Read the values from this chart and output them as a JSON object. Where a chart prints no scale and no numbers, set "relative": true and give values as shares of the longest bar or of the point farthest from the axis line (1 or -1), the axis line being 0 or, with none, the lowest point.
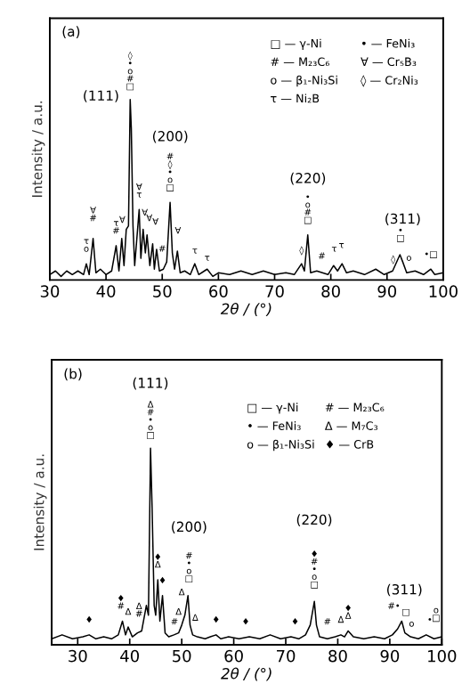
{
  "chart_data": [
    {
      "type": "line",
      "title": "(a)",
      "relative": true,
      "xlabel": "2θ / (°)",
      "ylabel": "Intensity / a.u.",
      "xlim": [
        30,
        100
      ],
      "xticks": [
        30,
        40,
        50,
        60,
        70,
        80,
        90,
        100
      ],
      "grid": false,
      "legend": false,
      "series": [
        {
          "color": "#000000",
          "x": [
            30,
            31,
            32,
            33,
            34,
            35,
            36,
            36.5,
            37,
            37.7,
            38.2,
            39,
            40,
            41,
            41.8,
            42.3,
            42.8,
            43.2,
            43.6,
            44.0,
            44.3,
            44.5,
            44.8,
            45.1,
            45.9,
            46.2,
            46.6,
            47.0,
            47.3,
            47.8,
            48.3,
            48.6,
            49.0,
            49.5,
            50.2,
            50.8,
            51.4,
            51.8,
            52.2,
            52.7,
            53.2,
            54,
            55,
            55.8,
            56.5,
            57.5,
            58,
            59,
            60,
            62,
            64,
            66,
            68,
            70,
            72,
            73.5,
            74.8,
            75.3,
            75.9,
            76.4,
            77.5,
            78.5,
            79.5,
            80.5,
            81.2,
            82,
            82.8,
            84,
            86,
            88,
            89.5,
            91,
            92.3,
            92.8,
            93.5,
            95,
            96.5,
            97.8,
            98.5,
            100
          ],
          "values": [
            0.03,
            0.05,
            0.02,
            0.05,
            0.03,
            0.05,
            0.03,
            0.09,
            0.03,
            0.23,
            0.04,
            0.06,
            0.03,
            0.05,
            0.19,
            0.05,
            0.23,
            0.08,
            0.28,
            0.3,
            1.0,
            0.84,
            0.3,
            0.08,
            0.39,
            0.12,
            0.28,
            0.15,
            0.25,
            0.08,
            0.2,
            0.06,
            0.17,
            0.05,
            0.06,
            0.1,
            0.43,
            0.15,
            0.06,
            0.16,
            0.04,
            0.05,
            0.03,
            0.09,
            0.03,
            0.05,
            0.06,
            0.02,
            0.04,
            0.03,
            0.05,
            0.03,
            0.05,
            0.03,
            0.04,
            0.03,
            0.09,
            0.05,
            0.25,
            0.04,
            0.05,
            0.04,
            0.03,
            0.08,
            0.05,
            0.09,
            0.04,
            0.05,
            0.03,
            0.06,
            0.03,
            0.05,
            0.14,
            0.1,
            0.04,
            0.05,
            0.03,
            0.06,
            0.03,
            0.04
          ]
        }
      ],
      "annotations": [
        "□ — γ-Ni",
        "# — M₂₃C₆",
        "o — β₁-Ni₃Si",
        "τ — Ni₂B",
        "• — FeNi₃",
        "∀ — Cr₅B₃",
        "◊ — Cr₂Ni₃",
        "(111)",
        "(200)",
        "(220)",
        "(311)",
        {
          "text": "◊\n•\no\n#\n□",
          "x": 44.3,
          "y": 1.0
        },
        {
          "text": "τ\no",
          "x": 36.5,
          "y": 0.1
        },
        {
          "text": "∀\n#",
          "x": 37.7,
          "y": 0.27
        },
        {
          "text": "τ\n#",
          "x": 41.8,
          "y": 0.2
        },
        {
          "text": "∀",
          "x": 42.9,
          "y": 0.26
        },
        {
          "text": "∀\nτ",
          "x": 45.9,
          "y": 0.4
        },
        {
          "text": "∀",
          "x": 46.9,
          "y": 0.3
        },
        {
          "text": "∀",
          "x": 47.7,
          "y": 0.27
        },
        {
          "text": "∀",
          "x": 48.8,
          "y": 0.25
        },
        {
          "text": "#",
          "x": 50.0,
          "y": 0.1
        },
        {
          "text": "#\n◊\n•\no\n□",
          "x": 51.4,
          "y": 0.44
        },
        {
          "text": "∀",
          "x": 52.8,
          "y": 0.2
        },
        {
          "text": "τ",
          "x": 55.8,
          "y": 0.09
        },
        {
          "text": "τ",
          "x": 58.0,
          "y": 0.05
        },
        {
          "text": "◊",
          "x": 74.8,
          "y": 0.09
        },
        {
          "text": "•\no\n#\n□",
          "x": 75.9,
          "y": 0.26
        },
        {
          "text": "#",
          "x": 78.4,
          "y": 0.06
        },
        {
          "text": "τ",
          "x": 80.6,
          "y": 0.1
        },
        {
          "text": "τ",
          "x": 81.9,
          "y": 0.12
        },
        {
          "text": "◊",
          "x": 91.1,
          "y": 0.04
        },
        {
          "text": "•\n□",
          "x": 92.4,
          "y": 0.16
        },
        {
          "text": "o",
          "x": 93.9,
          "y": 0.05
        },
        {
          "text": "•□",
          "x": 97.8,
          "y": 0.07
        }
      ]
    },
    {
      "type": "line",
      "title": "(b)",
      "relative": true,
      "xlabel": "2θ / (°)",
      "ylabel": "Intensity / a.u.",
      "xlim": [
        25,
        100
      ],
      "xticks": [
        30,
        40,
        50,
        60,
        70,
        80,
        90,
        100
      ],
      "grid": false,
      "legend": false,
      "series": [
        {
          "color": "#000000",
          "x": [
            25,
            27,
            29,
            31,
            32.2,
            33.5,
            35,
            36.5,
            37.8,
            38.6,
            39.2,
            39.7,
            40.5,
            41.5,
            42.3,
            43.2,
            43.6,
            44.0,
            44.3,
            44.7,
            45.0,
            45.4,
            45.8,
            46.3,
            46.8,
            47.5,
            48.5,
            49.4,
            50.0,
            50.6,
            51.2,
            51.6,
            52.1,
            53,
            54.5,
            55.5,
            56.6,
            57.5,
            59,
            61,
            63,
            65,
            67,
            69,
            71,
            72.5,
            73.8,
            74.7,
            75.5,
            75.9,
            76.5,
            78,
            79.5,
            80.6,
            81.3,
            82,
            83,
            85,
            87,
            89,
            90.5,
            91.5,
            92.3,
            92.9,
            94,
            95.5,
            97,
            98.5,
            100
          ],
          "values": [
            0.03,
            0.05,
            0.03,
            0.04,
            0.05,
            0.03,
            0.04,
            0.03,
            0.05,
            0.12,
            0.05,
            0.09,
            0.04,
            0.06,
            0.07,
            0.2,
            0.15,
            1.0,
            0.7,
            0.2,
            0.15,
            0.33,
            0.12,
            0.25,
            0.06,
            0.04,
            0.05,
            0.06,
            0.1,
            0.15,
            0.25,
            0.1,
            0.05,
            0.04,
            0.03,
            0.04,
            0.05,
            0.03,
            0.04,
            0.03,
            0.04,
            0.03,
            0.05,
            0.03,
            0.04,
            0.03,
            0.05,
            0.1,
            0.22,
            0.1,
            0.04,
            0.03,
            0.04,
            0.05,
            0.04,
            0.07,
            0.04,
            0.03,
            0.04,
            0.03,
            0.05,
            0.08,
            0.12,
            0.06,
            0.04,
            0.03,
            0.05,
            0.03,
            0.04
          ]
        }
      ],
      "annotations": [
        "□ — γ-Ni",
        "• — FeNi₃",
        "o — β₁-Ni₃Si",
        "# — M₂₃C₆",
        "Δ — M₇C₃",
        "♦ — CrB",
        "(111)",
        "(200)",
        "(220)",
        "(311)",
        {
          "text": "Δ\n#\n•\no\n□",
          "x": 44.0,
          "y": 1.0
        },
        {
          "text": "♦",
          "x": 32.2,
          "y": 0.06
        },
        {
          "text": "♦\n#",
          "x": 38.3,
          "y": 0.13
        },
        {
          "text": "Δ",
          "x": 39.7,
          "y": 0.1
        },
        {
          "text": "Δ\n#",
          "x": 41.8,
          "y": 0.09
        },
        {
          "text": "♦\nΔ",
          "x": 45.4,
          "y": 0.34
        },
        {
          "text": "♦",
          "x": 46.3,
          "y": 0.26
        },
        {
          "text": "#",
          "x": 48.6,
          "y": 0.05
        },
        {
          "text": "Δ",
          "x": 49.4,
          "y": 0.1
        },
        {
          "text": "Δ",
          "x": 50.0,
          "y": 0.2
        },
        {
          "text": "#\n•\no\n□",
          "x": 51.4,
          "y": 0.27
        },
        {
          "text": "Δ",
          "x": 52.6,
          "y": 0.07
        },
        {
          "text": "♦",
          "x": 56.6,
          "y": 0.06
        },
        {
          "text": "♦",
          "x": 62.3,
          "y": 0.05
        },
        {
          "text": "♦",
          "x": 71.8,
          "y": 0.05
        },
        {
          "text": "♦\n#\n•\no\n□",
          "x": 75.5,
          "y": 0.24
        },
        {
          "text": "#",
          "x": 78.0,
          "y": 0.05
        },
        {
          "text": "Δ",
          "x": 80.6,
          "y": 0.06
        },
        {
          "text": "♦\nΔ",
          "x": 82.0,
          "y": 0.08
        },
        {
          "text": "#•",
          "x": 90.8,
          "y": 0.13
        },
        {
          "text": "□",
          "x": 93.1,
          "y": 0.1
        },
        {
          "text": "o",
          "x": 94.2,
          "y": 0.04
        },
        {
          "text": "•",
          "x": 97.7,
          "y": 0.06
        },
        {
          "text": "o\n□",
          "x": 98.9,
          "y": 0.07
        }
      ]
    }
  ]
}
